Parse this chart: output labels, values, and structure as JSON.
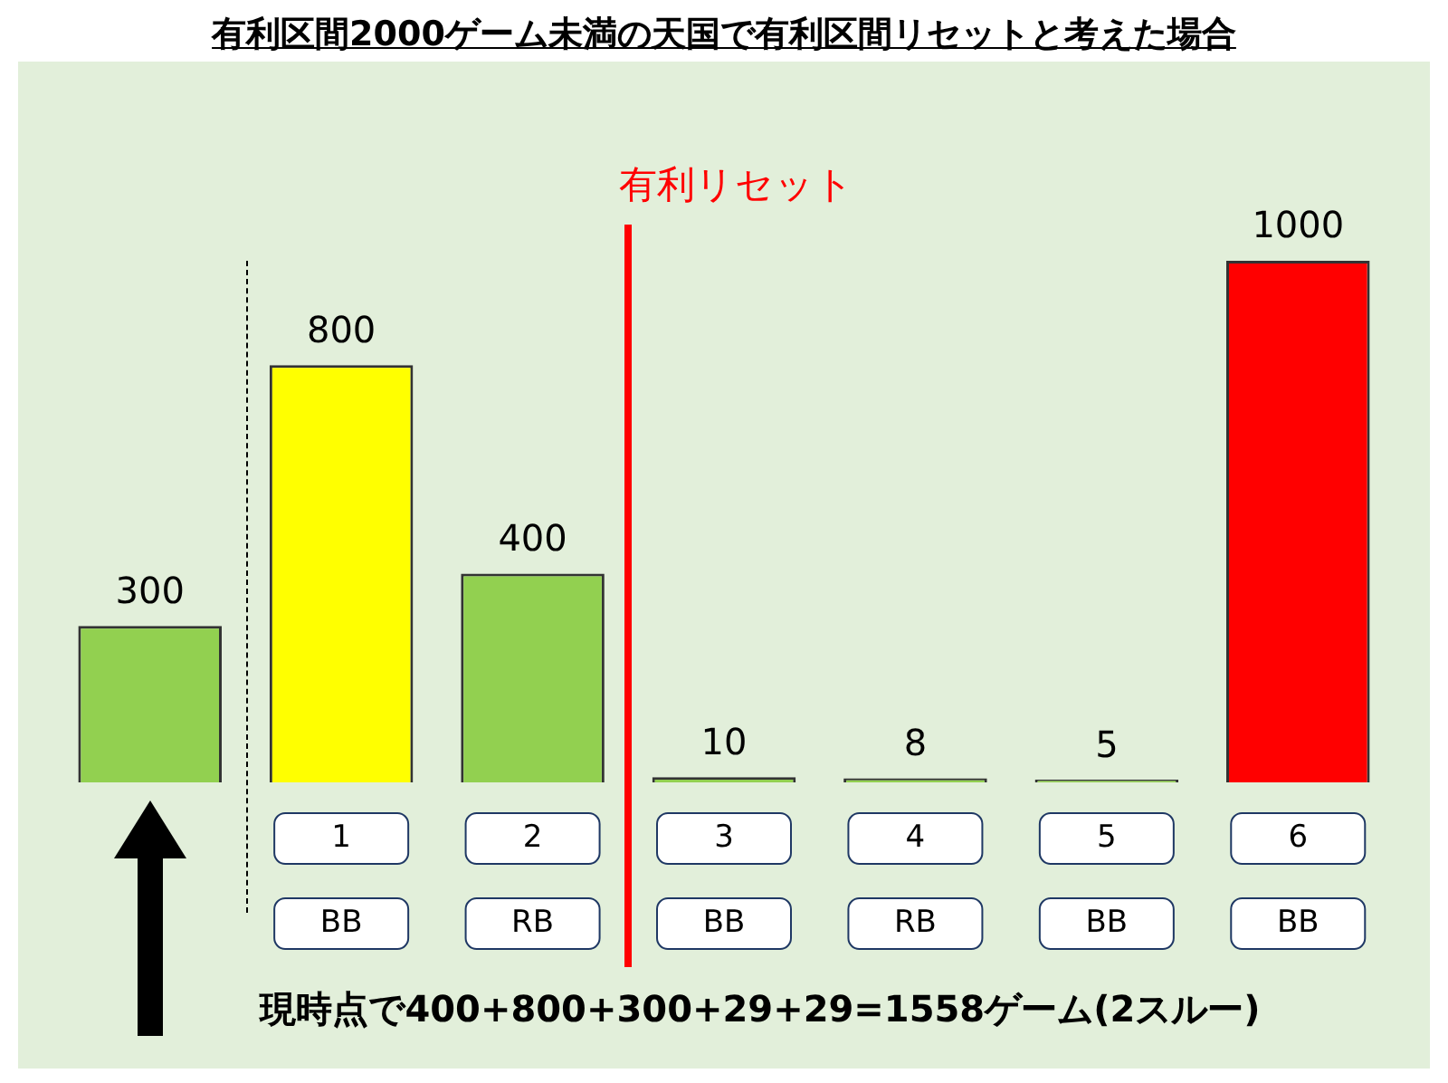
{
  "chart_data": {
    "type": "bar",
    "title": "有利区間2000ゲーム未満の天国で有利区間リセットと考えた場合",
    "categories": [
      null,
      "1",
      "2",
      "3",
      "4",
      "5",
      "6"
    ],
    "values": [
      300,
      800,
      400,
      10,
      8,
      5,
      1000
    ],
    "colors": [
      "#92d050",
      "#ffff00",
      "#92d050",
      "#92d050",
      "#92d050",
      "#92d050",
      "#ff0000"
    ],
    "data_labels": true,
    "tick_labels": "x",
    "grid": false,
    "legend": false,
    "annotations": [
      "有利リセット",
      "BB",
      "RB",
      "BB",
      "RB",
      "BB",
      "BB",
      "現時点で400+800+300+29+29=1558ゲーム(2スルー)"
    ]
  }
}
